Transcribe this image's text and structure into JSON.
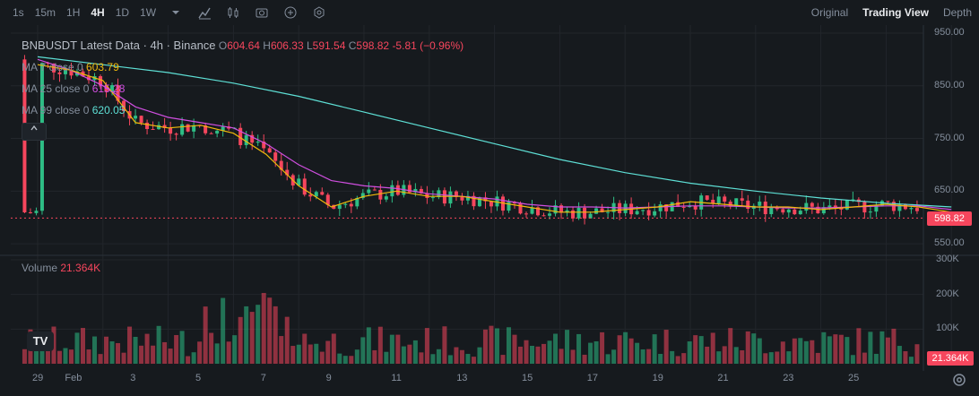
{
  "toolbar": {
    "timeframes": [
      {
        "label": "1s",
        "active": false
      },
      {
        "label": "15m",
        "active": false
      },
      {
        "label": "1H",
        "active": false
      },
      {
        "label": "4H",
        "active": true
      },
      {
        "label": "1D",
        "active": false
      },
      {
        "label": "1W",
        "active": false
      }
    ],
    "tools": [
      "chevron-down-icon",
      "line-tool-icon",
      "candle-type-icon",
      "camera-icon",
      "add-indicator-icon",
      "settings-hex-icon"
    ],
    "views": [
      {
        "label": "Original",
        "active": false
      },
      {
        "label": "Trading View",
        "active": true
      },
      {
        "label": "Depth",
        "active": false
      }
    ]
  },
  "legend": {
    "symbol": "BNBUSDT Latest Data · 4h · Binance",
    "o_label": "O",
    "o": "604.64",
    "h_label": "H",
    "h": "606.33",
    "l_label": "L",
    "l": "591.54",
    "c_label": "C",
    "c": "598.82",
    "change": "-5.81 (−0.96%)",
    "ma7_label": "MA 7 close 0",
    "ma7": "603.79",
    "ma25_label": "MA 25 close 0",
    "ma25": "615.28",
    "ma99_label": "MA 99 close 0",
    "ma99": "620.05",
    "collapse_icon": "chevron-up-icon"
  },
  "volume_legend": {
    "label": "Volume",
    "value": "21.364K"
  },
  "price_axis": {
    "labels": [
      "950.00",
      "850.00",
      "750.00",
      "650.00",
      "550.00"
    ],
    "current_price": "598.82"
  },
  "volume_axis": {
    "labels": [
      "300K",
      "200K",
      "100K"
    ],
    "current_volume": "21.364K"
  },
  "time_axis": {
    "labels": [
      "29",
      "Feb",
      "3",
      "5",
      "7",
      "9",
      "11",
      "13",
      "15",
      "17",
      "19",
      "21",
      "23",
      "25"
    ]
  },
  "colors": {
    "up": "#2ebd85",
    "down": "#f6465d",
    "ma7": "#f0b90b",
    "ma25": "#d04fe0",
    "ma99": "#5ee0d6",
    "grid": "#22262b",
    "background": "#161a1e"
  },
  "chart_data": {
    "type": "candlestick",
    "price_range": [
      540,
      955
    ],
    "volume_range": [
      0,
      300000
    ],
    "ma7": [
      [
        29,
        890
      ],
      [
        30,
        880
      ],
      [
        31,
        860
      ],
      [
        32,
        780
      ],
      [
        33,
        770
      ],
      [
        34,
        775
      ],
      [
        35,
        760
      ],
      [
        36,
        720
      ],
      [
        37,
        660
      ],
      [
        38,
        620
      ],
      [
        39,
        640
      ],
      [
        40,
        650
      ],
      [
        41,
        640
      ],
      [
        42,
        640
      ],
      [
        43,
        630
      ],
      [
        44,
        620
      ],
      [
        45,
        610
      ],
      [
        46,
        610
      ],
      [
        47,
        615
      ],
      [
        48,
        620
      ],
      [
        49,
        630
      ],
      [
        50,
        625
      ],
      [
        51,
        620
      ],
      [
        52,
        620
      ],
      [
        53,
        615
      ],
      [
        54,
        620
      ],
      [
        55,
        625
      ],
      [
        56,
        620
      ],
      [
        57,
        610
      ]
    ],
    "ma25": [
      [
        29,
        900
      ],
      [
        30,
        880
      ],
      [
        31,
        850
      ],
      [
        32,
        810
      ],
      [
        33,
        790
      ],
      [
        34,
        780
      ],
      [
        35,
        770
      ],
      [
        36,
        740
      ],
      [
        37,
        700
      ],
      [
        38,
        670
      ],
      [
        39,
        660
      ],
      [
        40,
        655
      ],
      [
        41,
        645
      ],
      [
        42,
        640
      ],
      [
        43,
        635
      ],
      [
        44,
        625
      ],
      [
        45,
        620
      ],
      [
        46,
        620
      ],
      [
        47,
        618
      ],
      [
        48,
        620
      ],
      [
        49,
        622
      ],
      [
        50,
        622
      ],
      [
        51,
        620
      ],
      [
        52,
        618
      ],
      [
        53,
        618
      ],
      [
        54,
        620
      ],
      [
        55,
        622
      ],
      [
        56,
        622
      ],
      [
        57,
        615
      ]
    ],
    "ma99": [
      [
        29,
        905
      ],
      [
        31,
        890
      ],
      [
        33,
        875
      ],
      [
        35,
        855
      ],
      [
        37,
        830
      ],
      [
        39,
        800
      ],
      [
        41,
        770
      ],
      [
        43,
        740
      ],
      [
        45,
        710
      ],
      [
        47,
        685
      ],
      [
        49,
        665
      ],
      [
        51,
        650
      ],
      [
        53,
        637
      ],
      [
        55,
        627
      ],
      [
        57,
        620
      ]
    ],
    "candles_summary": "BNBUSDT 4h candles from Jan 29 to Feb 24, price declining from ~900 to ~600"
  }
}
